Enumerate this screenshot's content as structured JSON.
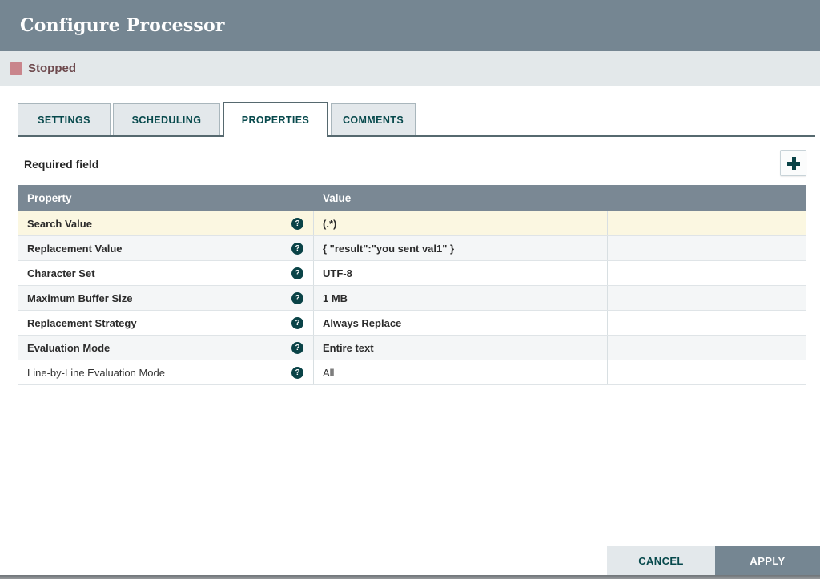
{
  "dialog": {
    "title": "Configure Processor"
  },
  "status": {
    "label": "Stopped",
    "icon": "stopped-square-icon",
    "square_color": "#c9858c",
    "text_color": "#6e4a4e"
  },
  "tabs": [
    {
      "label": "SETTINGS",
      "active": false
    },
    {
      "label": "SCHEDULING",
      "active": false
    },
    {
      "label": "PROPERTIES",
      "active": true
    },
    {
      "label": "COMMENTS",
      "active": false
    }
  ],
  "panel": {
    "required_label": "Required field",
    "add_button_icon": "plus-icon"
  },
  "table": {
    "columns": [
      "Property",
      "Value"
    ],
    "help_icon": "question-circle-icon",
    "rows": [
      {
        "name": "Search Value",
        "value": "(.*)",
        "required": true,
        "selected": true
      },
      {
        "name": "Replacement Value",
        "value": "{ \"result\":\"you sent val1\" }",
        "required": true,
        "selected": false
      },
      {
        "name": "Character Set",
        "value": "UTF-8",
        "required": true,
        "selected": false
      },
      {
        "name": "Maximum Buffer Size",
        "value": "1 MB",
        "required": true,
        "selected": false
      },
      {
        "name": "Replacement Strategy",
        "value": "Always Replace",
        "required": true,
        "selected": false
      },
      {
        "name": "Evaluation Mode",
        "value": "Entire text",
        "required": true,
        "selected": false
      },
      {
        "name": "Line-by-Line Evaluation Mode",
        "value": "All",
        "required": false,
        "selected": false
      }
    ]
  },
  "footer": {
    "cancel_label": "CANCEL",
    "apply_label": "APPLY"
  },
  "colors": {
    "header_bg": "#758692",
    "status_bar_bg": "#e3e8ea",
    "table_header_bg": "#7a8894",
    "selected_row_bg": "#fbf7e1",
    "alt_row_bg": "#f4f6f7",
    "accent_teal": "#07494c",
    "apply_bg": "#758692"
  }
}
